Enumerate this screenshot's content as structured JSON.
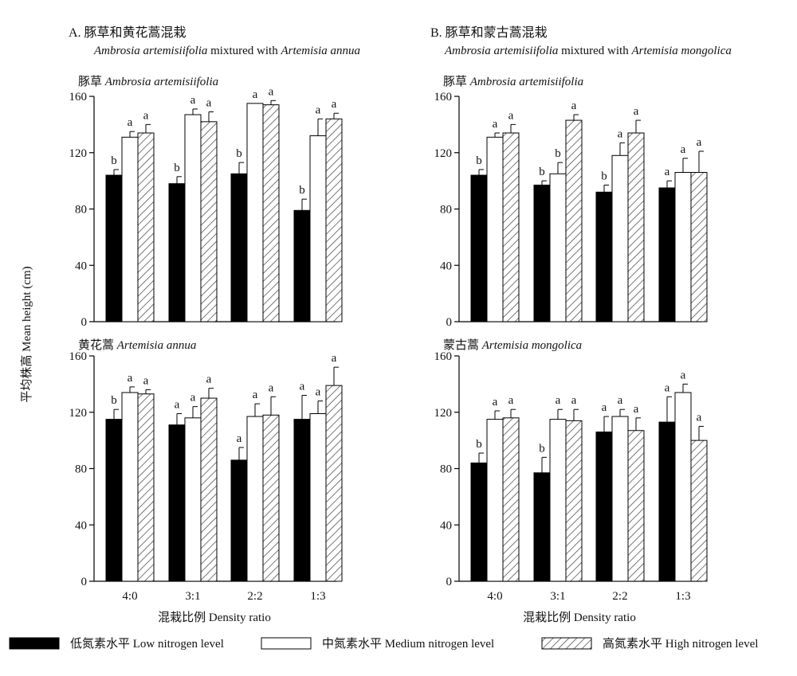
{
  "figure": {
    "y_axis_label": "平均株高  Mean height (cm)",
    "x_axis_label": "混栽比例    Density ratio",
    "columns": [
      {
        "title": "A. 豚草和黄花蒿混栽",
        "subtitle_parts": [
          {
            "text": "Ambrosia artemisiifolia",
            "italic": true
          },
          {
            "text": " mixtured with ",
            "italic": false
          },
          {
            "text": "Artemisia annua",
            "italic": true
          }
        ]
      },
      {
        "title": "B. 豚草和蒙古蒿混栽",
        "subtitle_parts": [
          {
            "text": "Ambrosia artemisiifolia",
            "italic": true
          },
          {
            "text": " mixtured with ",
            "italic": false
          },
          {
            "text": "Artemisia mongolica",
            "italic": true
          }
        ]
      }
    ]
  },
  "legend": [
    {
      "key": "low",
      "label": "低氮素水平  Low nitrogen level"
    },
    {
      "key": "medium",
      "label": "中氮素水平  Medium nitrogen level"
    },
    {
      "key": "high",
      "label": "高氮素水平  High nitrogen level"
    }
  ],
  "chart_data": [
    {
      "type": "bar",
      "panel": "A-top",
      "species_cn": "豚草",
      "species_latin": "Ambrosia artemisiifolia",
      "categories": [
        "4:0",
        "3:1",
        "2:2",
        "1:3"
      ],
      "ylim": [
        0,
        160
      ],
      "yticks": [
        0,
        40,
        80,
        120,
        160
      ],
      "show_xticks": false,
      "series": [
        {
          "name": "低氮素水平  Low nitrogen level",
          "values": [
            104,
            98,
            105,
            79
          ],
          "errors": [
            4,
            5,
            8,
            8
          ],
          "letters": [
            "b",
            "b",
            "b",
            "b"
          ]
        },
        {
          "name": "中氮素水平  Medium nitrogen level",
          "values": [
            131,
            147,
            155,
            132
          ],
          "errors": [
            4,
            4,
            0,
            12
          ],
          "letters": [
            "a",
            "a",
            "a",
            "a"
          ]
        },
        {
          "name": "高氮素水平  High nitrogen level",
          "values": [
            134,
            142,
            154,
            144
          ],
          "errors": [
            6,
            7,
            3,
            4
          ],
          "letters": [
            "a",
            "a",
            "a",
            "a"
          ]
        }
      ]
    },
    {
      "type": "bar",
      "panel": "A-bottom",
      "species_cn": "黄花蒿",
      "species_latin": "Artemisia annua",
      "categories": [
        "4:0",
        "3:1",
        "2:2",
        "1:3"
      ],
      "ylim": [
        0,
        160
      ],
      "yticks": [
        0,
        40,
        80,
        120,
        160
      ],
      "show_xticks": true,
      "series": [
        {
          "name": "低氮素水平  Low nitrogen level",
          "values": [
            115,
            111,
            86,
            115
          ],
          "errors": [
            7,
            8,
            9,
            17
          ],
          "letters": [
            "b",
            "a",
            "a",
            "a"
          ]
        },
        {
          "name": "中氮素水平  Medium nitrogen level",
          "values": [
            134,
            116,
            117,
            119
          ],
          "errors": [
            4,
            8,
            9,
            9
          ],
          "letters": [
            "a",
            "a",
            "a",
            "a"
          ]
        },
        {
          "name": "高氮素水平  High nitrogen level",
          "values": [
            133,
            130,
            118,
            139
          ],
          "errors": [
            3,
            7,
            13,
            13
          ],
          "letters": [
            "a",
            "a",
            "a",
            "a"
          ]
        }
      ]
    },
    {
      "type": "bar",
      "panel": "B-top",
      "species_cn": "豚草",
      "species_latin": "Ambrosia artemisiifolia",
      "categories": [
        "4:0",
        "3:1",
        "2:2",
        "1:3"
      ],
      "ylim": [
        0,
        160
      ],
      "yticks": [
        0,
        40,
        80,
        120,
        160
      ],
      "show_xticks": false,
      "series": [
        {
          "name": "低氮素水平  Low nitrogen level",
          "values": [
            104,
            97,
            92,
            95
          ],
          "errors": [
            4,
            3,
            5,
            5
          ],
          "letters": [
            "b",
            "b",
            "b",
            "a"
          ]
        },
        {
          "name": "中氮素水平  Medium nitrogen level",
          "values": [
            131,
            105,
            118,
            106
          ],
          "errors": [
            3,
            8,
            9,
            10
          ],
          "letters": [
            "a",
            "b",
            "a",
            "a"
          ]
        },
        {
          "name": "高氮素水平  High nitrogen level",
          "values": [
            134,
            143,
            134,
            106
          ],
          "errors": [
            6,
            4,
            9,
            15
          ],
          "letters": [
            "a",
            "a",
            "a",
            "a"
          ]
        }
      ]
    },
    {
      "type": "bar",
      "panel": "B-bottom",
      "species_cn": "蒙古蒿",
      "species_latin": "Artemisia mongolica",
      "categories": [
        "4:0",
        "3:1",
        "2:2",
        "1:3"
      ],
      "ylim": [
        0,
        160
      ],
      "yticks": [
        0,
        40,
        80,
        120,
        160
      ],
      "show_xticks": true,
      "series": [
        {
          "name": "低氮素水平  Low nitrogen level",
          "values": [
            84,
            77,
            106,
            113
          ],
          "errors": [
            7,
            11,
            11,
            18
          ],
          "letters": [
            "b",
            "b",
            "a",
            "a"
          ]
        },
        {
          "name": "中氮素水平  Medium nitrogen level",
          "values": [
            115,
            115,
            117,
            134
          ],
          "errors": [
            6,
            7,
            5,
            6
          ],
          "letters": [
            "a",
            "a",
            "a",
            "a"
          ]
        },
        {
          "name": "高氮素水平  High nitrogen level",
          "values": [
            116,
            114,
            107,
            100
          ],
          "errors": [
            6,
            8,
            9,
            10
          ],
          "letters": [
            "a",
            "a",
            "a",
            "a"
          ]
        }
      ]
    }
  ],
  "colors": {
    "low": "#000000",
    "medium": "#ffffff",
    "high_hatch": "#555555",
    "stroke": "#000000"
  }
}
